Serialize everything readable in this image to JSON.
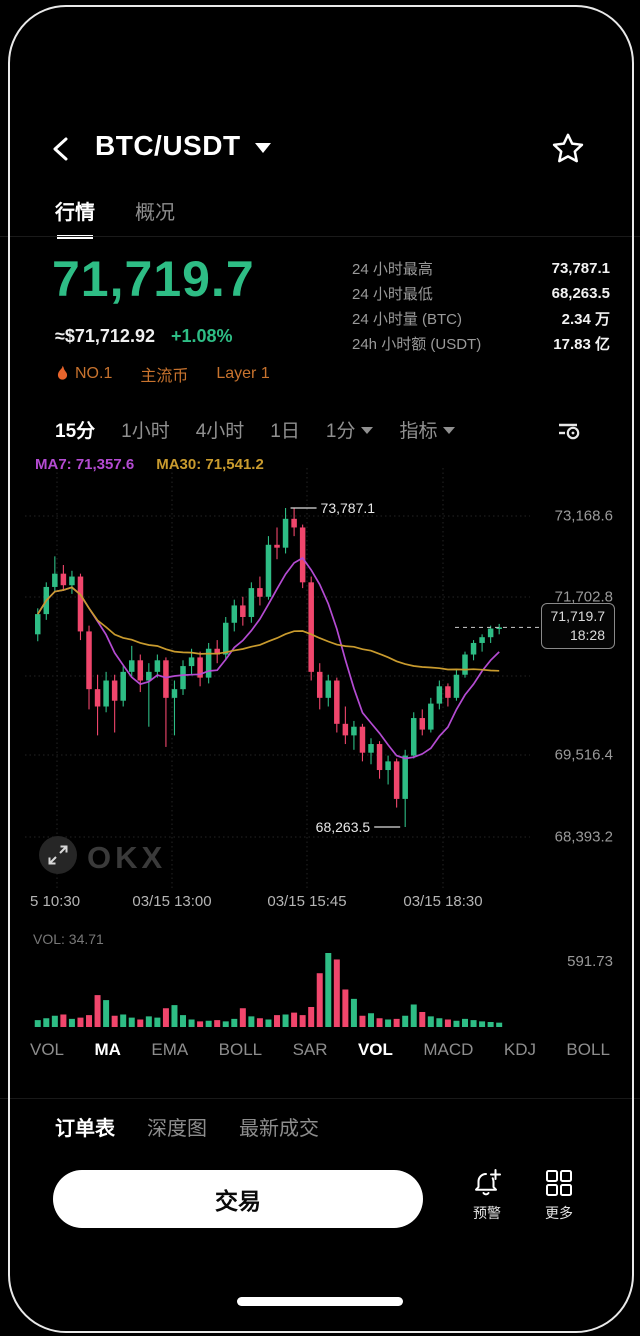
{
  "header": {
    "title": "BTC/USDT"
  },
  "tabs": [
    {
      "label": "行情",
      "active": true
    },
    {
      "label": "概况",
      "active": false
    }
  ],
  "price": {
    "last": "71,719.7",
    "fiat": "≈$71,712.92",
    "change": "+1.08%"
  },
  "badges": [
    {
      "icon": "flame-icon",
      "label": "NO.1"
    },
    {
      "label": "主流币"
    },
    {
      "label": "Layer 1"
    }
  ],
  "stats": [
    {
      "label": "24 小时最高",
      "value": "73,787.1"
    },
    {
      "label": "24 小时最低",
      "value": "68,263.5"
    },
    {
      "label": "24 小时量 (BTC)",
      "value": "2.34 万"
    },
    {
      "label": "24h 小时额 (USDT)",
      "value": "17.83 亿"
    }
  ],
  "timeframes": [
    {
      "label": "15分",
      "active": true
    },
    {
      "label": "1小时",
      "active": false
    },
    {
      "label": "4小时",
      "active": false
    },
    {
      "label": "1日",
      "active": false
    },
    {
      "label": "1分",
      "active": false,
      "caret": true
    },
    {
      "label": "指标",
      "active": false,
      "caret": true
    }
  ],
  "chart_data": {
    "type": "candlestick",
    "interval": "15分",
    "ma_labels": [
      {
        "text": "MA7: 71,357.6",
        "color": "#b44bd2"
      },
      {
        "text": "MA30: 71,541.2",
        "color": "#c99b2e"
      }
    ],
    "high_annotation": "73,787.1",
    "low_annotation": "68,263.5",
    "last_price": "71,719.7",
    "last_time": "18:28",
    "price_high": 73787.1,
    "price_low": 68263.5,
    "y_axis_labels": [
      "73,168.6",
      "71,702.8",
      "69,516.4",
      "68,393.2"
    ],
    "x_axis_labels": [
      "5 10:30",
      "03/15 13:00",
      "03/15 15:45",
      "03/15 18:30"
    ],
    "colors": {
      "up": "#2ebd85",
      "down": "#f0466c",
      "ma7": "#b44bd2",
      "ma30": "#c99b2e"
    },
    "candles": [
      [
        71600,
        72050,
        71480,
        71950
      ],
      [
        71950,
        72500,
        71850,
        72420
      ],
      [
        72420,
        72950,
        72350,
        72650
      ],
      [
        72650,
        72800,
        72350,
        72450
      ],
      [
        72450,
        72700,
        72300,
        72600
      ],
      [
        72600,
        72650,
        71500,
        71650
      ],
      [
        71650,
        71750,
        70300,
        70650
      ],
      [
        70650,
        70900,
        69850,
        70350
      ],
      [
        70350,
        70950,
        70250,
        70800
      ],
      [
        70800,
        70900,
        69900,
        70450
      ],
      [
        70450,
        71050,
        70350,
        70950
      ],
      [
        70950,
        71400,
        70850,
        71150
      ],
      [
        71150,
        71250,
        70600,
        70800
      ],
      [
        70800,
        71100,
        70000,
        70950
      ],
      [
        70950,
        71250,
        70850,
        71150
      ],
      [
        71150,
        71200,
        69650,
        70500
      ],
      [
        70500,
        70800,
        69850,
        70650
      ],
      [
        70650,
        71150,
        70550,
        71050
      ],
      [
        71050,
        71350,
        70900,
        71200
      ],
      [
        71200,
        71300,
        70700,
        70850
      ],
      [
        70850,
        71450,
        70750,
        71350
      ],
      [
        71350,
        71500,
        71100,
        71250
      ],
      [
        71250,
        71900,
        71150,
        71800
      ],
      [
        71800,
        72200,
        71650,
        72100
      ],
      [
        72100,
        72250,
        71750,
        71900
      ],
      [
        71900,
        72500,
        71800,
        72400
      ],
      [
        72400,
        72600,
        72100,
        72250
      ],
      [
        72250,
        73300,
        72200,
        73150
      ],
      [
        73150,
        73450,
        72900,
        73100
      ],
      [
        73100,
        73787.1,
        73000,
        73600
      ],
      [
        73600,
        73780,
        73300,
        73450
      ],
      [
        73450,
        73500,
        72400,
        72500
      ],
      [
        72500,
        72600,
        70800,
        70950
      ],
      [
        70950,
        71100,
        70300,
        70500
      ],
      [
        70500,
        70900,
        70350,
        70800
      ],
      [
        70800,
        70850,
        69900,
        70050
      ],
      [
        70050,
        70350,
        69700,
        69850
      ],
      [
        69850,
        70100,
        69600,
        70000
      ],
      [
        70000,
        70050,
        69400,
        69550
      ],
      [
        69550,
        69800,
        69350,
        69700
      ],
      [
        69700,
        69750,
        69100,
        69250
      ],
      [
        69250,
        69500,
        69000,
        69400
      ],
      [
        69400,
        69450,
        68600,
        68750
      ],
      [
        68750,
        69600,
        68263.5,
        69500
      ],
      [
        69500,
        70250,
        69450,
        70150
      ],
      [
        70150,
        70300,
        69850,
        69950
      ],
      [
        69950,
        70500,
        69900,
        70400
      ],
      [
        70400,
        70800,
        70300,
        70700
      ],
      [
        70700,
        70750,
        70350,
        70500
      ],
      [
        70500,
        71000,
        70450,
        70900
      ],
      [
        70900,
        71300,
        70850,
        71250
      ],
      [
        71250,
        71500,
        71150,
        71450
      ],
      [
        71450,
        71600,
        71300,
        71550
      ],
      [
        71550,
        71750,
        71450,
        71700
      ],
      [
        71700,
        71780,
        71600,
        71719.7
      ]
    ],
    "volumes": [
      55,
      70,
      90,
      100,
      65,
      75,
      95,
      255,
      215,
      90,
      100,
      75,
      60,
      85,
      75,
      150,
      175,
      95,
      60,
      45,
      50,
      55,
      45,
      65,
      150,
      85,
      70,
      60,
      95,
      100,
      115,
      95,
      160,
      430,
      591.73,
      540,
      300,
      225,
      90,
      110,
      70,
      60,
      65,
      90,
      180,
      120,
      85,
      70,
      60,
      50,
      65,
      55,
      45,
      40,
      34.71
    ],
    "volume_label": "VOL: 34.71",
    "volume_axis_label": "591.73"
  },
  "indicators": [
    {
      "label": "VOL",
      "active": false
    },
    {
      "label": "MA",
      "active": true
    },
    {
      "label": "EMA",
      "active": false
    },
    {
      "label": "BOLL",
      "active": false
    },
    {
      "label": "SAR",
      "active": false
    },
    {
      "label": "VOL",
      "active": true
    },
    {
      "label": "MACD",
      "active": false
    },
    {
      "label": "KDJ",
      "active": false
    },
    {
      "label": "BOLL",
      "active": false
    }
  ],
  "bottom_tabs": [
    {
      "label": "订单表",
      "active": true
    },
    {
      "label": "深度图",
      "active": false
    },
    {
      "label": "最新成交",
      "active": false
    }
  ],
  "actions": {
    "trade": "交易",
    "alert": "预警",
    "more": "更多"
  },
  "watermark": "OKX"
}
